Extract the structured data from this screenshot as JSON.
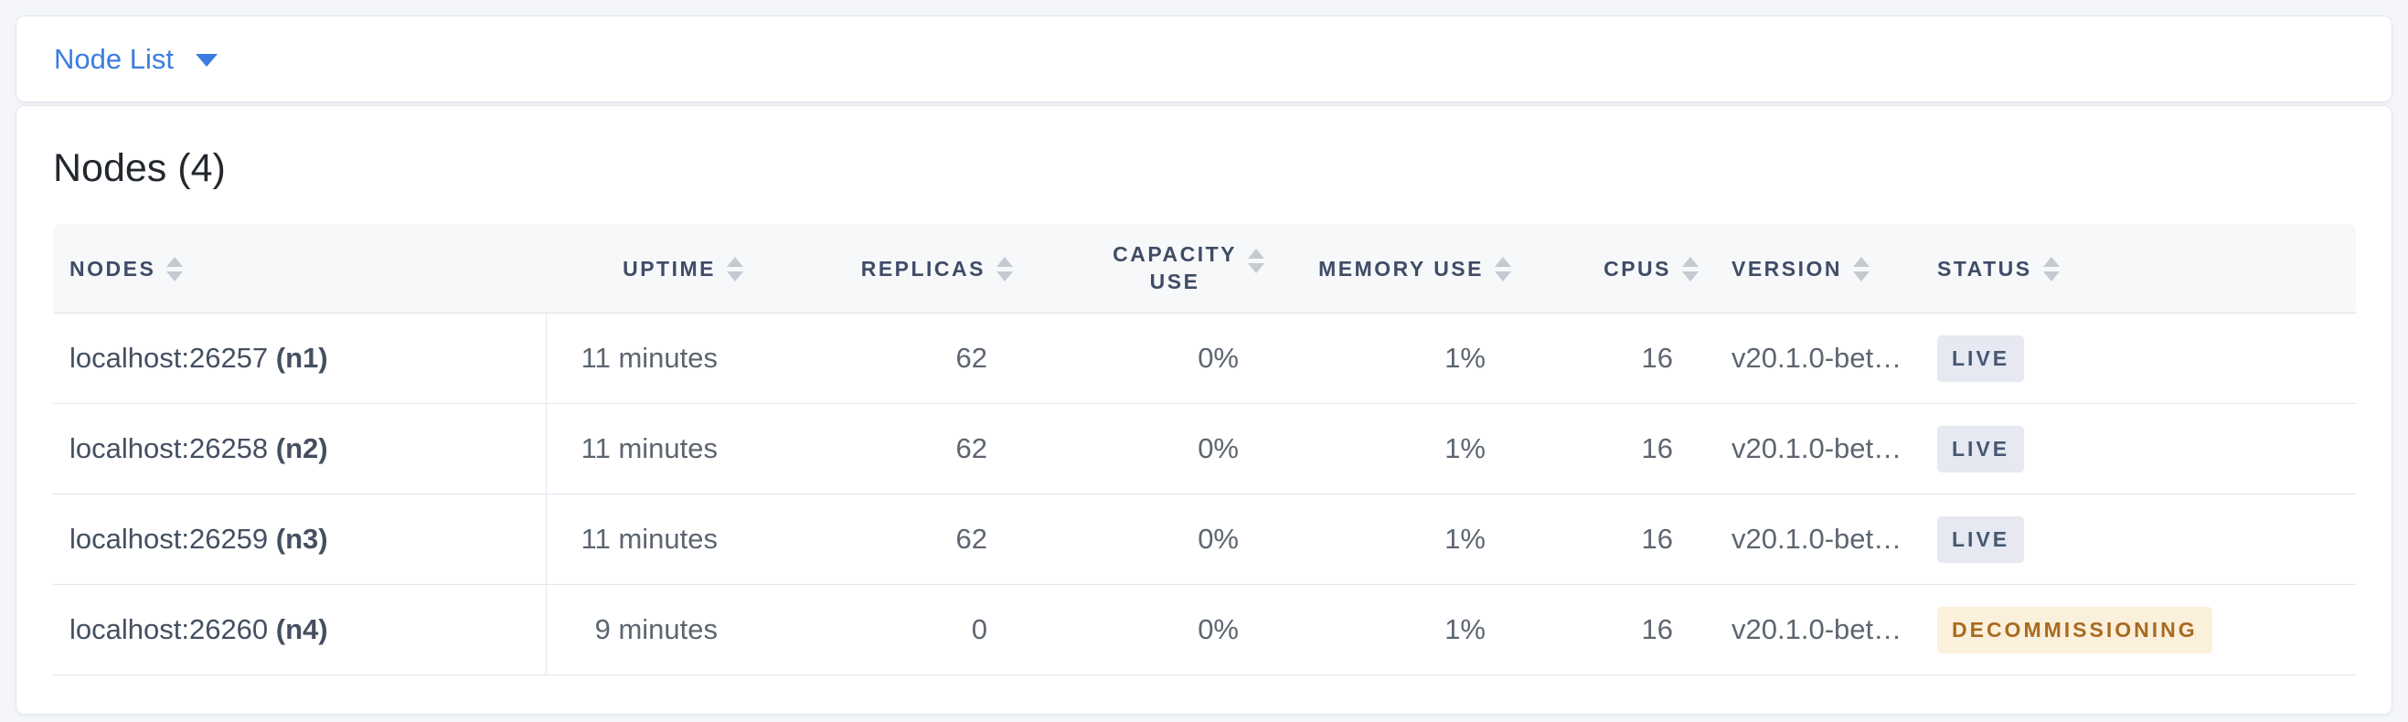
{
  "view_selector": {
    "label": "Node List"
  },
  "heading": {
    "title": "Nodes (4)"
  },
  "table": {
    "columns": [
      {
        "id": "nodes",
        "label": "NODES",
        "align": "left"
      },
      {
        "id": "uptime",
        "label": "UPTIME",
        "align": "right"
      },
      {
        "id": "replicas",
        "label": "REPLICAS",
        "align": "right"
      },
      {
        "id": "capacity_use",
        "label": "CAPACITY USE",
        "label_lines": [
          "CAPACITY",
          "USE"
        ],
        "align": "right"
      },
      {
        "id": "memory_use",
        "label": "MEMORY USE",
        "align": "right"
      },
      {
        "id": "cpus",
        "label": "CPUS",
        "align": "right"
      },
      {
        "id": "version",
        "label": "VERSION",
        "align": "left"
      },
      {
        "id": "status",
        "label": "STATUS",
        "align": "left"
      }
    ],
    "rows": [
      {
        "address": "localhost:26257",
        "node_id": "(n1)",
        "uptime": "11 minutes",
        "replicas": "62",
        "capacity_use": "0%",
        "memory_use": "1%",
        "cpus": "16",
        "version": "v20.1.0-bet…",
        "status": "LIVE",
        "status_type": "live"
      },
      {
        "address": "localhost:26258",
        "node_id": "(n2)",
        "uptime": "11 minutes",
        "replicas": "62",
        "capacity_use": "0%",
        "memory_use": "1%",
        "cpus": "16",
        "version": "v20.1.0-bet…",
        "status": "LIVE",
        "status_type": "live"
      },
      {
        "address": "localhost:26259",
        "node_id": "(n3)",
        "uptime": "11 minutes",
        "replicas": "62",
        "capacity_use": "0%",
        "memory_use": "1%",
        "cpus": "16",
        "version": "v20.1.0-bet…",
        "status": "LIVE",
        "status_type": "live"
      },
      {
        "address": "localhost:26260",
        "node_id": "(n4)",
        "uptime": "9 minutes",
        "replicas": "0",
        "capacity_use": "0%",
        "memory_use": "1%",
        "cpus": "16",
        "version": "v20.1.0-bet…",
        "status": "DECOMMISSIONING",
        "status_type": "decommissioning"
      }
    ]
  },
  "colors": {
    "link_blue": "#3b7ce0",
    "live_badge_bg": "#e6e9f1",
    "live_badge_text": "#475872",
    "decommissioning_badge_bg": "#fbf0db",
    "decommissioning_badge_text": "#a96a20"
  }
}
